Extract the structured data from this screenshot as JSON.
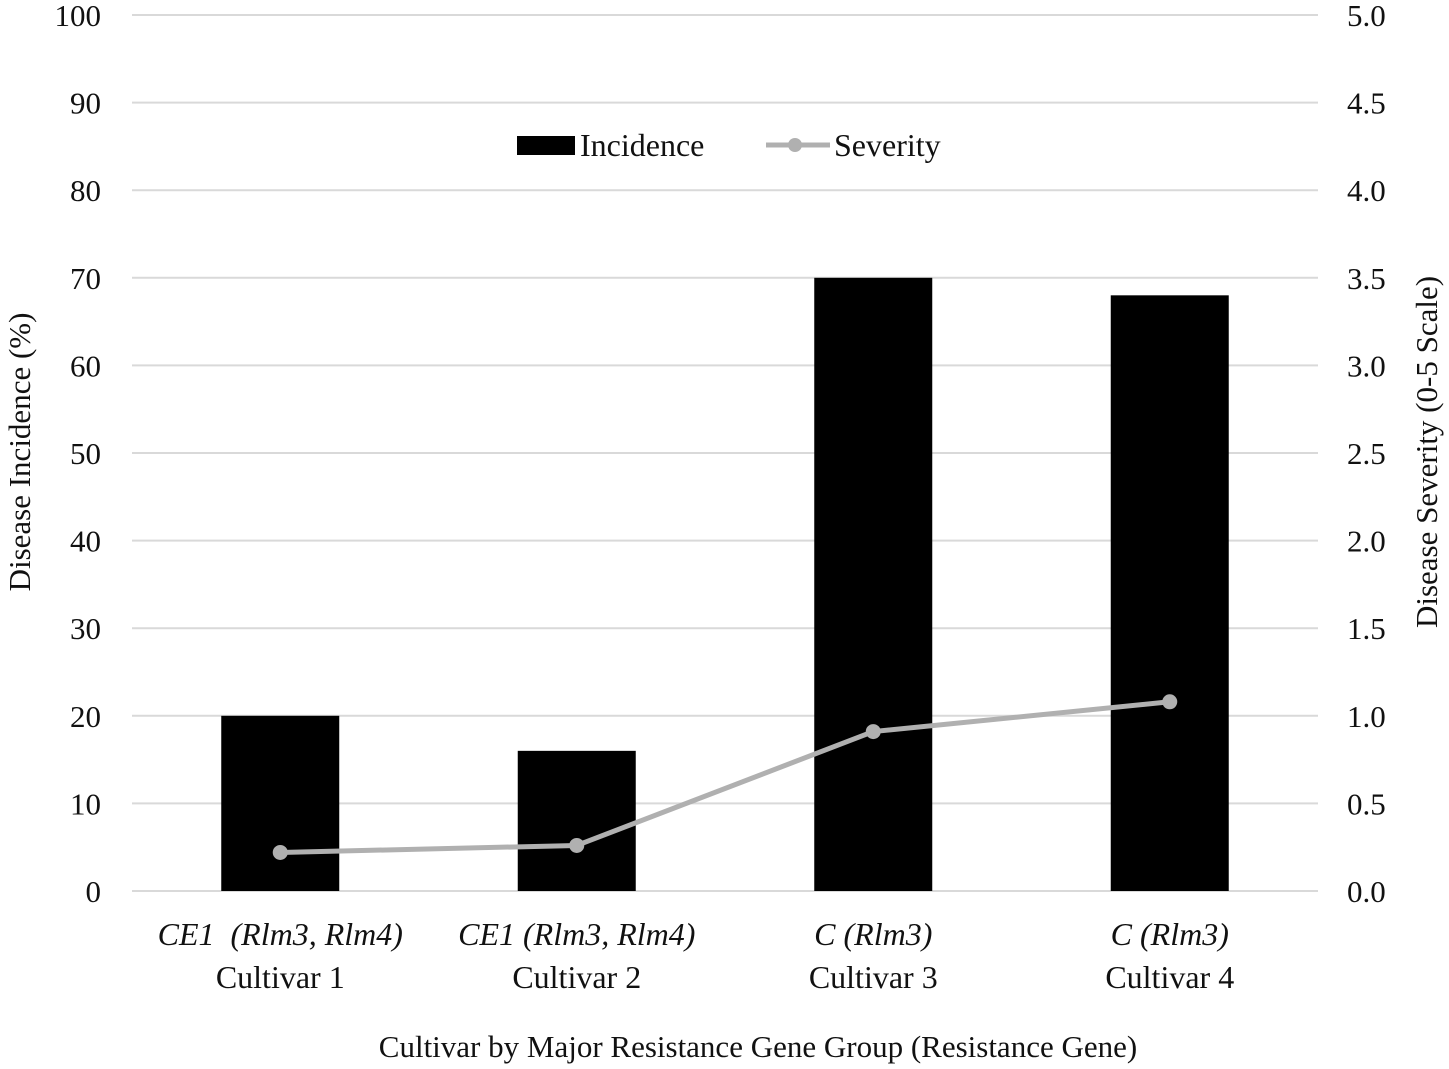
{
  "chart_data": {
    "type": "bar",
    "categories": [
      {
        "gene_group": "CE1  (Rlm3, Rlm4)",
        "name": "Cultivar 1"
      },
      {
        "gene_group": "CE1 (Rlm3, Rlm4)",
        "name": "Cultivar 2"
      },
      {
        "gene_group": "C (Rlm3)",
        "name": "Cultivar 3"
      },
      {
        "gene_group": "C (Rlm3)",
        "name": "Cultivar 4"
      }
    ],
    "series": [
      {
        "name": "Incidence",
        "type": "bar",
        "axis": "left",
        "color": "#000000",
        "values": [
          20,
          16,
          70,
          68
        ]
      },
      {
        "name": "Severity",
        "type": "line",
        "axis": "right",
        "color": "#b0b0b0",
        "values": [
          0.22,
          0.26,
          0.91,
          1.08
        ]
      }
    ],
    "xlabel": "Cultivar by Major Resistance Gene Group (Resistance Gene)",
    "ylabel": "Disease Incidence (%)",
    "y2label": "Disease Severity  (0-5 Scale)",
    "ylim": [
      0,
      100
    ],
    "y2lim": [
      0,
      5
    ],
    "yticks": [
      "0",
      "10",
      "20",
      "30",
      "40",
      "50",
      "60",
      "70",
      "80",
      "90",
      "100"
    ],
    "y2ticks": [
      "0.0",
      "0.5",
      "1.0",
      "1.5",
      "2.0",
      "2.5",
      "3.0",
      "3.5",
      "4.0",
      "4.5",
      "5.0"
    ],
    "grid": true,
    "legend_position": "top-center",
    "gridline_color": "#d9d9d9"
  }
}
